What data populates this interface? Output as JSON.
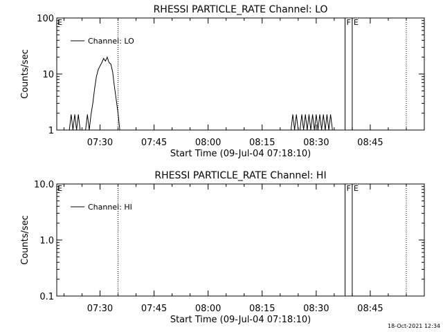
{
  "footer": {
    "timestamp": "18-Oct-2021 12:34"
  },
  "chart_data": [
    {
      "type": "line",
      "title": "RHESSI PARTICLE_RATE Channel: LO",
      "xlabel": "Start Time (09-Jul-04 07:18:10)",
      "ylabel": "Counts/sec",
      "yscale": "log",
      "ylim": [
        1,
        100
      ],
      "xlim": [
        "07:18",
        "09:00"
      ],
      "xticks": [
        "07:30",
        "07:45",
        "08:00",
        "08:15",
        "08:30",
        "08:45"
      ],
      "yticks": [
        {
          "value": 1,
          "label": "1"
        },
        {
          "value": 10,
          "label": "10"
        },
        {
          "value": 100,
          "label": "100"
        }
      ],
      "legend": {
        "position": "top-left",
        "entries": [
          "Channel: LO"
        ]
      },
      "vlines": [
        {
          "time": "07:35",
          "style": "dotted"
        },
        {
          "time": "08:38",
          "style": "solid",
          "label": "F"
        },
        {
          "time": "08:40",
          "style": "solid",
          "label": "E"
        },
        {
          "time": "08:55",
          "style": "dotted"
        }
      ],
      "corner_label": "E",
      "series": [
        {
          "name": "Channel: LO",
          "points": [
            [
              "07:21:30",
              1
            ],
            [
              "07:22:00",
              1.9
            ],
            [
              "07:22:30",
              1
            ],
            [
              "07:23:00",
              1.9
            ],
            [
              "07:23:30",
              1
            ],
            [
              "07:24:00",
              1.9
            ],
            [
              "07:24:30",
              1
            ],
            [
              "07:25:00",
              1
            ],
            [
              "07:26:00",
              1
            ],
            [
              "07:26:30",
              1.9
            ],
            [
              "07:27:00",
              1
            ],
            [
              "07:27:30",
              1.9
            ],
            [
              "07:28:00",
              3
            ],
            [
              "07:28:30",
              5.5
            ],
            [
              "07:29:00",
              9
            ],
            [
              "07:29:30",
              12
            ],
            [
              "07:30:00",
              14
            ],
            [
              "07:30:30",
              16
            ],
            [
              "07:31:00",
              19
            ],
            [
              "07:31:30",
              17
            ],
            [
              "07:32:00",
              20
            ],
            [
              "07:32:30",
              16
            ],
            [
              "07:33:00",
              15
            ],
            [
              "07:33:30",
              11
            ],
            [
              "07:34:00",
              6
            ],
            [
              "07:34:30",
              3.5
            ],
            [
              "07:35:00",
              2
            ],
            [
              "07:35:30",
              1
            ],
            [
              "08:23:00",
              1
            ],
            [
              "08:23:30",
              1.9
            ],
            [
              "08:24:00",
              1
            ],
            [
              "08:24:30",
              1.9
            ],
            [
              "08:25:00",
              1
            ],
            [
              "08:25:30",
              1
            ],
            [
              "08:26:00",
              1.9
            ],
            [
              "08:26:30",
              1
            ],
            [
              "08:27:00",
              1.9
            ],
            [
              "08:27:30",
              1
            ],
            [
              "08:28:00",
              1.9
            ],
            [
              "08:28:30",
              1
            ],
            [
              "08:29:00",
              1.9
            ],
            [
              "08:29:30",
              1
            ],
            [
              "08:30:00",
              1.9
            ],
            [
              "08:30:30",
              1
            ],
            [
              "08:31:00",
              1.9
            ],
            [
              "08:31:30",
              1
            ],
            [
              "08:32:00",
              1.9
            ],
            [
              "08:32:30",
              1
            ],
            [
              "08:33:00",
              1.9
            ],
            [
              "08:33:30",
              1
            ],
            [
              "08:34:00",
              1.9
            ],
            [
              "08:34:30",
              1
            ]
          ]
        }
      ]
    },
    {
      "type": "line",
      "title": "RHESSI PARTICLE_RATE Channel: HI",
      "xlabel": "Start Time (09-Jul-04 07:18:10)",
      "ylabel": "Counts/sec",
      "yscale": "log",
      "ylim": [
        0.1,
        10
      ],
      "xlim": [
        "07:18",
        "09:00"
      ],
      "xticks": [
        "07:30",
        "07:45",
        "08:00",
        "08:15",
        "08:30",
        "08:45"
      ],
      "yticks": [
        {
          "value": 0.1,
          "label": "0.1"
        },
        {
          "value": 1,
          "label": "1.0"
        },
        {
          "value": 10,
          "label": "10.0"
        }
      ],
      "legend": {
        "position": "top-left",
        "entries": [
          "Channel: HI"
        ]
      },
      "vlines": [
        {
          "time": "07:35",
          "style": "dotted"
        },
        {
          "time": "08:38",
          "style": "solid",
          "label": "F"
        },
        {
          "time": "08:40",
          "style": "solid",
          "label": "E"
        },
        {
          "time": "08:55",
          "style": "dotted"
        }
      ],
      "corner_label": "E",
      "series": [
        {
          "name": "Channel: HI",
          "points": []
        }
      ]
    }
  ]
}
